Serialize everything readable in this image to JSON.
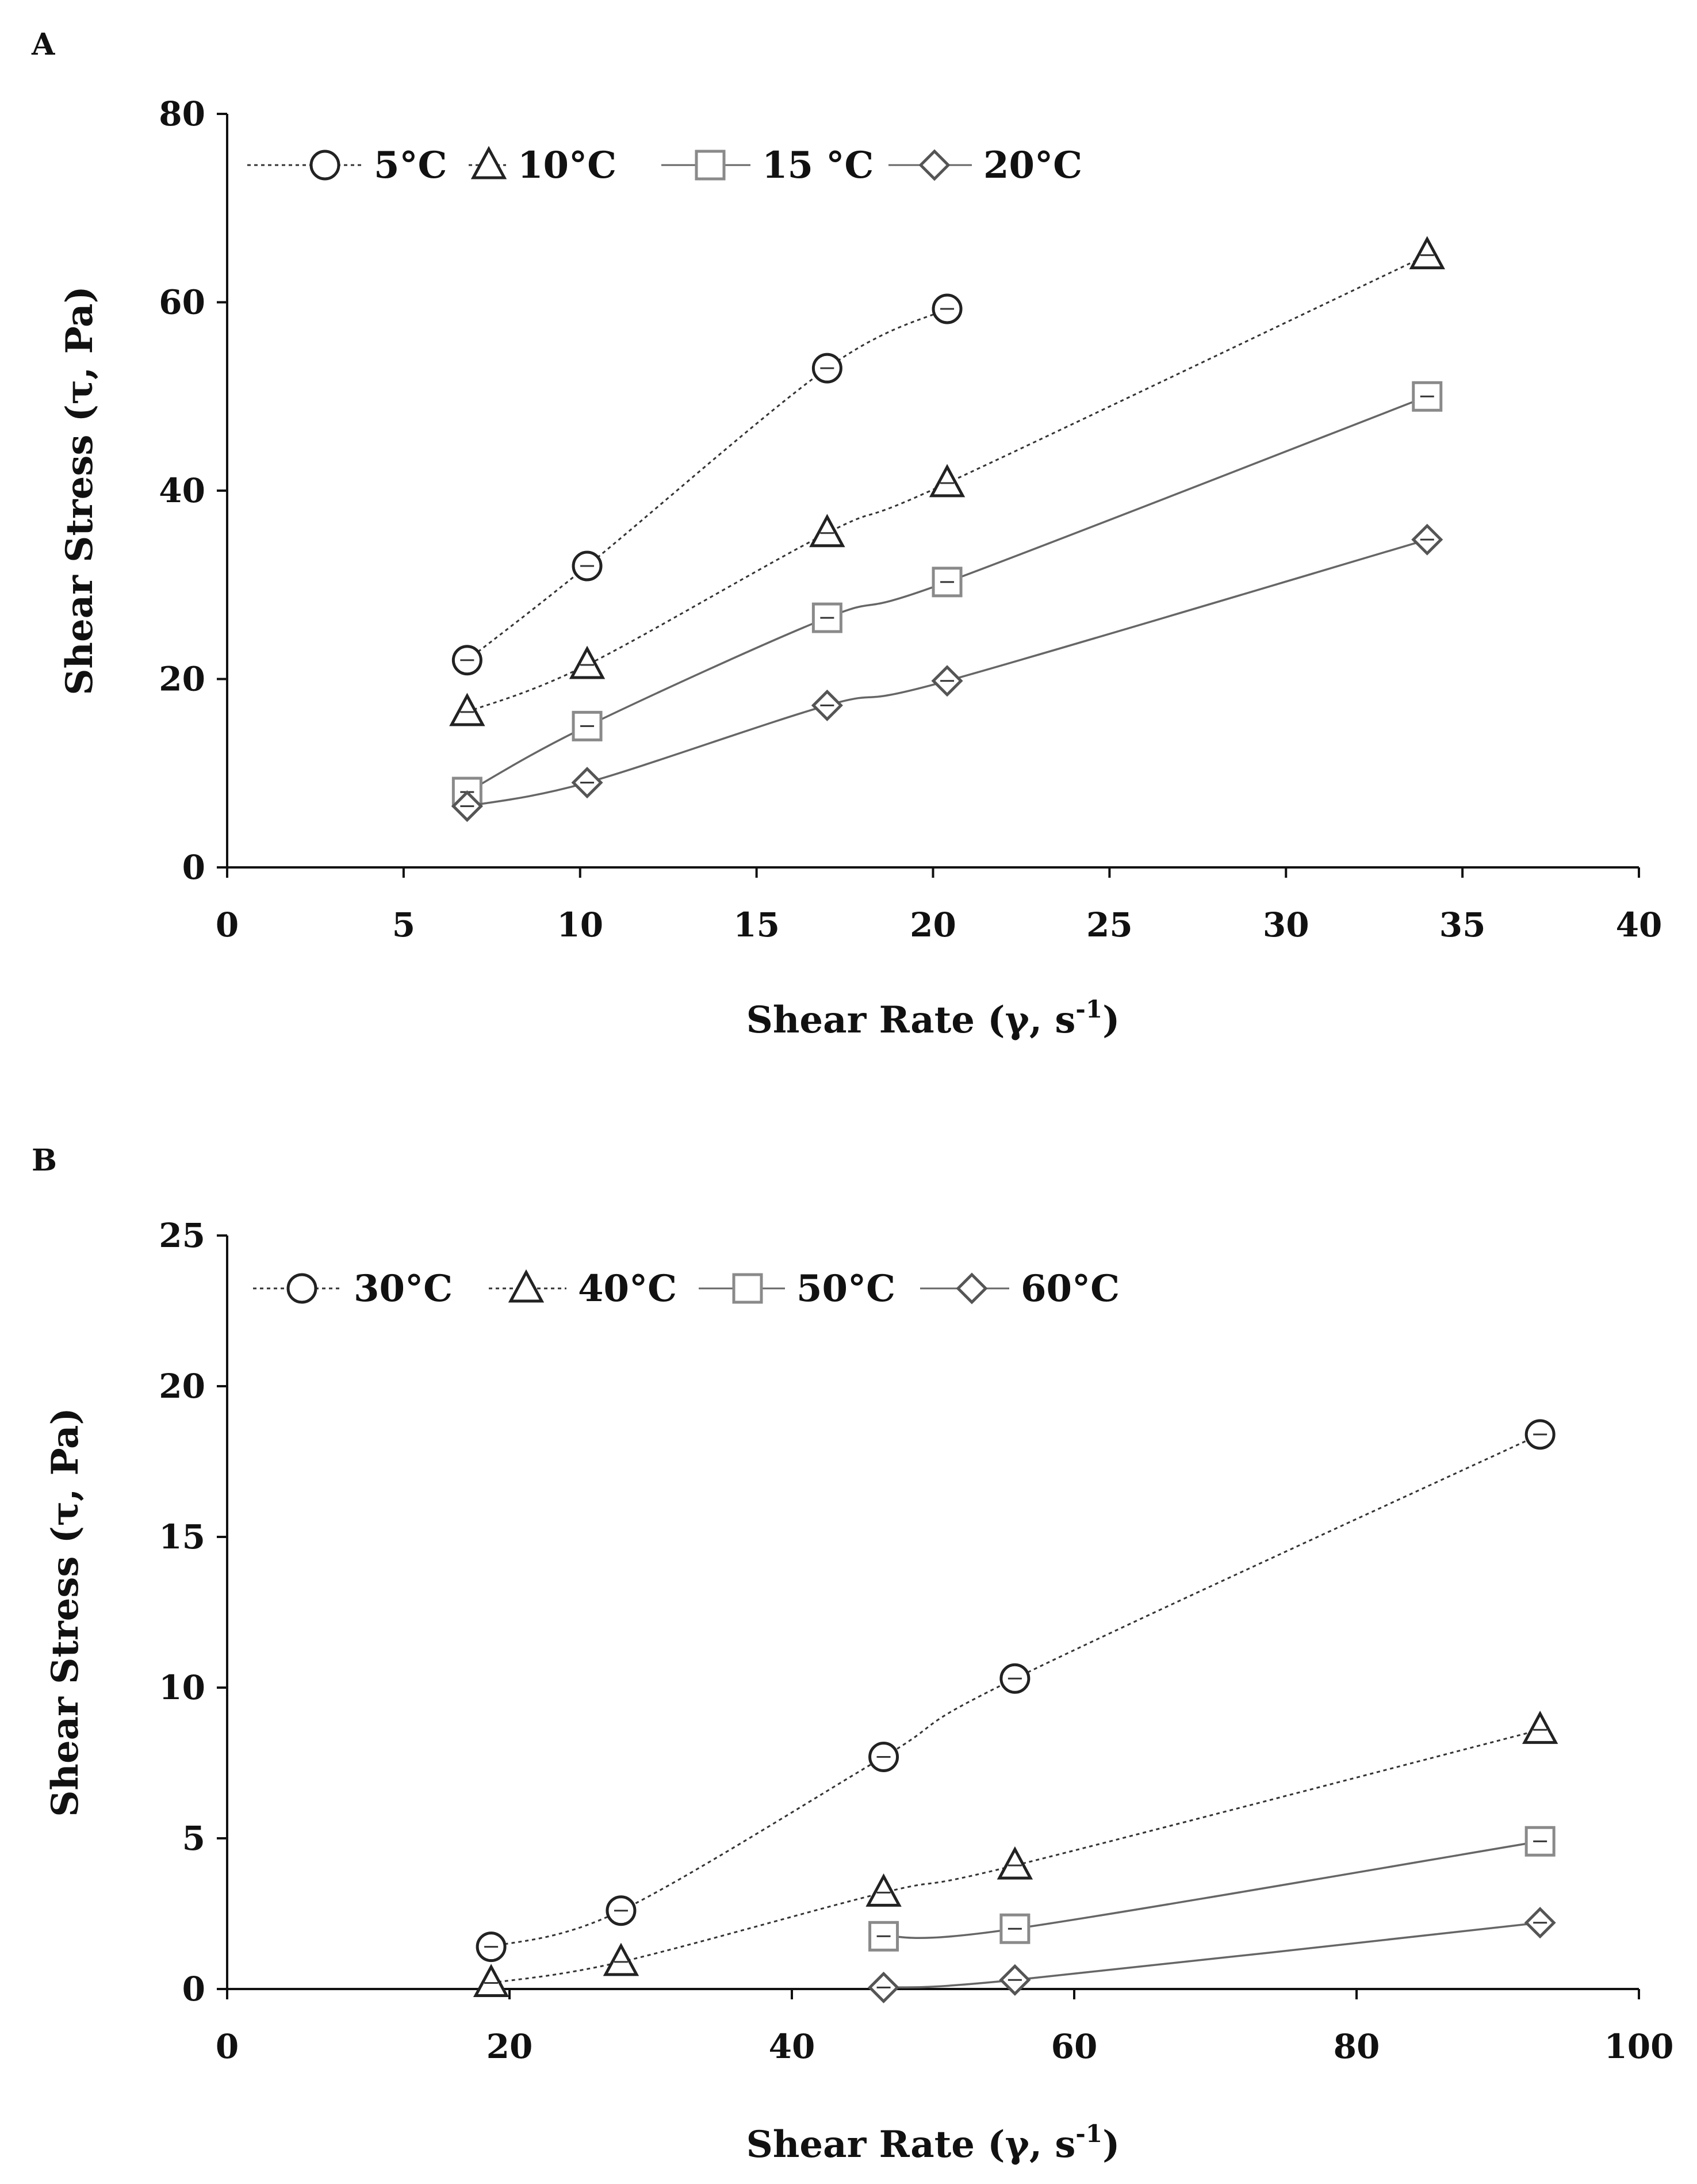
{
  "chart_data": [
    {
      "panel_label": "A",
      "type": "line",
      "xlabel": "Shear Rate (γ, s",
      "xlabel_sup": "-1",
      "xlabel_end": ")",
      "ylabel": "Shear Stress (τ, Pa)",
      "xlim": [
        0,
        40
      ],
      "ylim": [
        0,
        80
      ],
      "x_ticks": [
        0,
        5,
        10,
        15,
        20,
        25,
        30,
        35,
        40
      ],
      "y_ticks": [
        0,
        20,
        40,
        60,
        80
      ],
      "grid": false,
      "legend_position": "top-left",
      "series": [
        {
          "name": "5°C",
          "marker": "circle",
          "line": "dotted",
          "color": "#222222",
          "x": [
            6.8,
            10.2,
            17.0,
            20.4
          ],
          "y": [
            22.0,
            32.0,
            53.0,
            59.3
          ]
        },
        {
          "name": "10°C",
          "marker": "triangle",
          "line": "dotted",
          "color": "#222222",
          "x": [
            6.8,
            10.2,
            17.0,
            20.4,
            34.0
          ],
          "y": [
            16.5,
            21.5,
            35.5,
            40.8,
            65.0
          ]
        },
        {
          "name": "15 °C",
          "marker": "square",
          "line": "solid",
          "color": "#555555",
          "x": [
            6.8,
            10.2,
            17.0,
            20.4,
            34.0
          ],
          "y": [
            8.0,
            15.0,
            26.5,
            30.3,
            50.0
          ]
        },
        {
          "name": "20°C",
          "marker": "diamond",
          "line": "solid",
          "color": "#555555",
          "x": [
            6.8,
            10.2,
            17.0,
            20.4,
            34.0
          ],
          "y": [
            6.5,
            9.0,
            17.2,
            19.8,
            34.8
          ]
        }
      ]
    },
    {
      "panel_label": "B",
      "type": "line",
      "xlabel": "Shear Rate (γ, s",
      "xlabel_sup": "-1",
      "xlabel_end": ")",
      "ylabel": "Shear Stress (τ, Pa)",
      "xlim": [
        0,
        100
      ],
      "ylim": [
        0,
        25
      ],
      "x_ticks": [
        0,
        20,
        40,
        60,
        80,
        100
      ],
      "y_ticks": [
        0,
        5,
        10,
        15,
        20,
        25
      ],
      "grid": false,
      "legend_position": "top-left",
      "series": [
        {
          "name": "30°C",
          "marker": "circle",
          "line": "dotted",
          "color": "#222222",
          "x": [
            18.7,
            27.9,
            46.5,
            55.8,
            93.0
          ],
          "y": [
            1.4,
            2.6,
            7.7,
            10.3,
            18.4
          ]
        },
        {
          "name": "40°C",
          "marker": "triangle",
          "line": "dotted",
          "color": "#222222",
          "x": [
            18.7,
            27.9,
            46.5,
            55.8,
            93.0
          ],
          "y": [
            0.2,
            0.9,
            3.2,
            4.1,
            8.6
          ]
        },
        {
          "name": "50°C",
          "marker": "square",
          "line": "solid",
          "color": "#555555",
          "x": [
            46.5,
            55.8,
            93.0
          ],
          "y": [
            1.75,
            2.0,
            4.9
          ]
        },
        {
          "name": "60°C",
          "marker": "diamond",
          "line": "solid",
          "color": "#555555",
          "x": [
            46.5,
            55.8,
            93.0
          ],
          "y": [
            0.05,
            0.3,
            2.2
          ]
        }
      ]
    }
  ]
}
